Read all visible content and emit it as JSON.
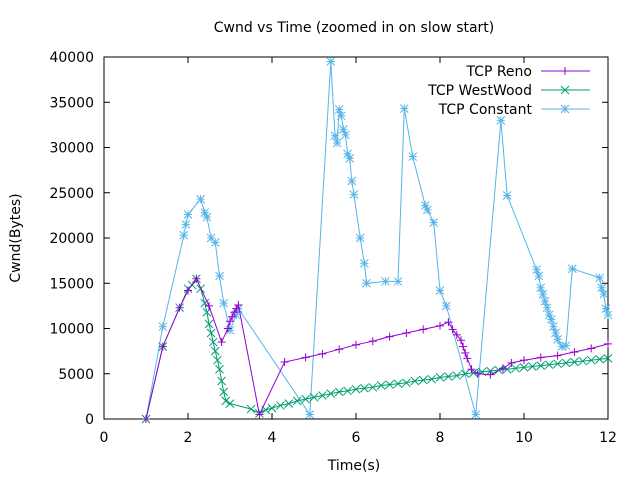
{
  "chart_data": {
    "type": "line",
    "title": "Cwnd vs Time (zoomed in on slow start)",
    "xlabel": "Time(s)",
    "ylabel": "Cwnd(Bytes)",
    "xlim": [
      0,
      12
    ],
    "ylim": [
      0,
      40000
    ],
    "xticks": [
      0,
      2,
      4,
      6,
      8,
      10,
      12
    ],
    "yticks": [
      0,
      5000,
      10000,
      15000,
      20000,
      25000,
      30000,
      35000,
      40000
    ],
    "grid": false,
    "legend_position": "top-right",
    "series": [
      {
        "name": "TCP Reno",
        "color": "#9400d3",
        "marker": "plus",
        "points": [
          [
            1.0,
            0
          ],
          [
            1.4,
            8000
          ],
          [
            1.8,
            12300
          ],
          [
            2.0,
            14200
          ],
          [
            2.2,
            15500
          ],
          [
            2.5,
            12500
          ],
          [
            2.8,
            8500
          ],
          [
            2.95,
            10000
          ],
          [
            3.0,
            10800
          ],
          [
            3.05,
            11300
          ],
          [
            3.1,
            11800
          ],
          [
            3.15,
            12200
          ],
          [
            3.2,
            12600
          ],
          [
            3.7,
            500
          ],
          [
            4.3,
            6300
          ],
          [
            4.8,
            6800
          ],
          [
            5.2,
            7200
          ],
          [
            5.6,
            7700
          ],
          [
            6.0,
            8200
          ],
          [
            6.4,
            8600
          ],
          [
            6.8,
            9100
          ],
          [
            7.2,
            9500
          ],
          [
            7.6,
            9900
          ],
          [
            8.0,
            10300
          ],
          [
            8.2,
            10700
          ],
          [
            8.3,
            9900
          ],
          [
            8.4,
            9300
          ],
          [
            8.5,
            8700
          ],
          [
            8.55,
            8000
          ],
          [
            8.6,
            7300
          ],
          [
            8.65,
            6700
          ],
          [
            8.75,
            5500
          ],
          [
            8.9,
            5000
          ],
          [
            9.2,
            4900
          ],
          [
            9.5,
            5600
          ],
          [
            9.7,
            6200
          ],
          [
            10.0,
            6500
          ],
          [
            10.4,
            6800
          ],
          [
            10.8,
            7000
          ],
          [
            11.2,
            7400
          ],
          [
            11.6,
            7800
          ],
          [
            12.0,
            8300
          ]
        ]
      },
      {
        "name": "TCP WestWood",
        "color": "#009e73",
        "marker": "cross",
        "points": [
          [
            1.0,
            0
          ],
          [
            1.4,
            8000
          ],
          [
            1.8,
            12300
          ],
          [
            2.0,
            14400
          ],
          [
            2.1,
            14800
          ],
          [
            2.2,
            15500
          ],
          [
            2.3,
            14400
          ],
          [
            2.4,
            12800
          ],
          [
            2.45,
            11800
          ],
          [
            2.5,
            10500
          ],
          [
            2.55,
            9500
          ],
          [
            2.6,
            8500
          ],
          [
            2.65,
            7500
          ],
          [
            2.7,
            6500
          ],
          [
            2.75,
            5500
          ],
          [
            2.8,
            4200
          ],
          [
            2.85,
            3000
          ],
          [
            2.9,
            2000
          ],
          [
            3.0,
            1700
          ],
          [
            3.5,
            1100
          ],
          [
            3.7,
            600
          ],
          [
            3.85,
            1000
          ],
          [
            4.0,
            1200
          ],
          [
            4.2,
            1500
          ],
          [
            4.4,
            1700
          ],
          [
            4.6,
            2000
          ],
          [
            4.8,
            2200
          ],
          [
            5.0,
            2400
          ],
          [
            5.2,
            2600
          ],
          [
            5.4,
            2800
          ],
          [
            5.6,
            3000
          ],
          [
            5.8,
            3100
          ],
          [
            6.0,
            3300
          ],
          [
            6.2,
            3400
          ],
          [
            6.4,
            3500
          ],
          [
            6.6,
            3700
          ],
          [
            6.8,
            3800
          ],
          [
            7.0,
            3900
          ],
          [
            7.2,
            4000
          ],
          [
            7.4,
            4200
          ],
          [
            7.6,
            4300
          ],
          [
            7.8,
            4400
          ],
          [
            8.0,
            4600
          ],
          [
            8.2,
            4700
          ],
          [
            8.4,
            4800
          ],
          [
            8.6,
            5000
          ],
          [
            8.8,
            5100
          ],
          [
            9.0,
            5200
          ],
          [
            9.2,
            5300
          ],
          [
            9.4,
            5400
          ],
          [
            9.6,
            5500
          ],
          [
            9.8,
            5600
          ],
          [
            10.0,
            5700
          ],
          [
            10.2,
            5800
          ],
          [
            10.4,
            5900
          ],
          [
            10.6,
            6000
          ],
          [
            10.8,
            6100
          ],
          [
            11.0,
            6200
          ],
          [
            11.2,
            6300
          ],
          [
            11.4,
            6400
          ],
          [
            11.6,
            6500
          ],
          [
            11.8,
            6600
          ],
          [
            12.0,
            6700
          ]
        ]
      },
      {
        "name": "TCP Constant",
        "color": "#56b4e9",
        "marker": "star",
        "points": [
          [
            1.0,
            0
          ],
          [
            1.4,
            10200
          ],
          [
            1.9,
            20300
          ],
          [
            1.95,
            21500
          ],
          [
            2.0,
            22600
          ],
          [
            2.3,
            24300
          ],
          [
            2.4,
            22800
          ],
          [
            2.45,
            22300
          ],
          [
            2.55,
            20000
          ],
          [
            2.65,
            19500
          ],
          [
            2.75,
            15800
          ],
          [
            2.85,
            12800
          ],
          [
            3.0,
            9800
          ],
          [
            3.15,
            11500
          ],
          [
            3.2,
            12200
          ],
          [
            4.9,
            500
          ],
          [
            5.4,
            39500
          ],
          [
            5.5,
            31300
          ],
          [
            5.55,
            30500
          ],
          [
            5.6,
            34200
          ],
          [
            5.65,
            33500
          ],
          [
            5.7,
            32000
          ],
          [
            5.75,
            31400
          ],
          [
            5.8,
            29300
          ],
          [
            5.85,
            28800
          ],
          [
            5.9,
            26300
          ],
          [
            5.95,
            24800
          ],
          [
            6.1,
            20000
          ],
          [
            6.2,
            17200
          ],
          [
            6.25,
            15000
          ],
          [
            6.7,
            15200
          ],
          [
            7.0,
            15200
          ],
          [
            7.15,
            34300
          ],
          [
            7.35,
            29000
          ],
          [
            7.65,
            23600
          ],
          [
            7.7,
            23100
          ],
          [
            7.85,
            21700
          ],
          [
            8.0,
            14200
          ],
          [
            8.15,
            12500
          ],
          [
            8.85,
            500
          ],
          [
            9.45,
            33000
          ],
          [
            9.6,
            24700
          ],
          [
            10.3,
            16500
          ],
          [
            10.35,
            15800
          ],
          [
            10.4,
            14500
          ],
          [
            10.45,
            13800
          ],
          [
            10.5,
            13000
          ],
          [
            10.55,
            12300
          ],
          [
            10.6,
            11500
          ],
          [
            10.65,
            11000
          ],
          [
            10.7,
            10200
          ],
          [
            10.75,
            9500
          ],
          [
            10.8,
            8800
          ],
          [
            10.9,
            8000
          ],
          [
            11.0,
            8100
          ],
          [
            11.15,
            16600
          ],
          [
            11.8,
            15600
          ],
          [
            11.85,
            14500
          ],
          [
            11.9,
            13800
          ],
          [
            11.95,
            12200
          ],
          [
            12.0,
            11500
          ]
        ]
      }
    ]
  }
}
